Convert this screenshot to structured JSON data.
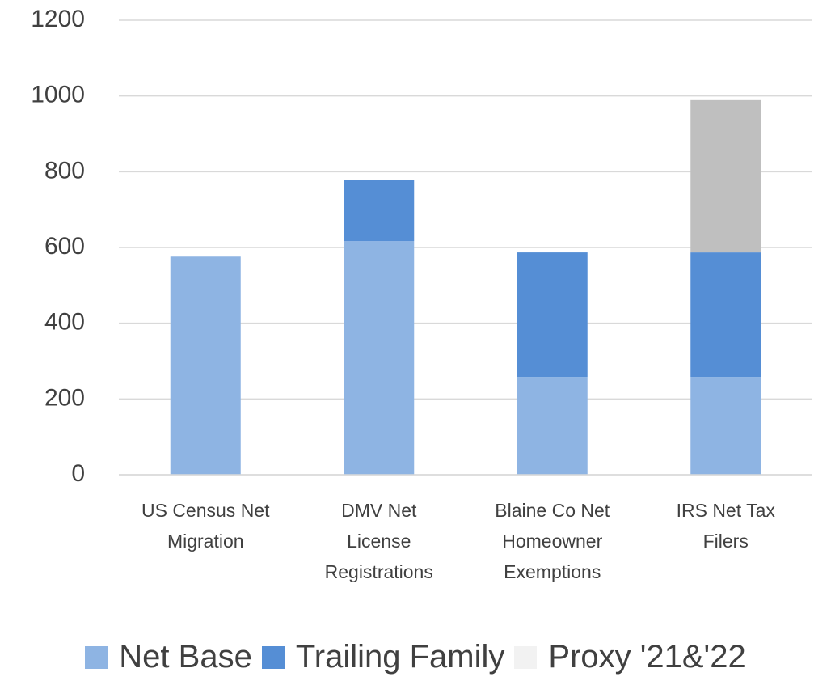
{
  "chart_data": {
    "type": "stacked_bar",
    "categories": [
      "US Census Net\nMigration",
      "DMV Net\nLicense\nRegistrations",
      "Blaine Co Net\nHomeowner\nExemptions",
      "IRS Net Tax\nFilers"
    ],
    "series": [
      {
        "name": "Net Base",
        "color": "#8EB4E3",
        "legend_color": "#8EB4E3",
        "values": [
          576,
          617,
          258,
          258
        ]
      },
      {
        "name": "Trailing Family",
        "color": "#558ED5",
        "legend_color": "#558ED5",
        "values": [
          null,
          162,
          329,
          329
        ]
      },
      {
        "name": "Proxy '21&'22",
        "color": "#BFBFBF",
        "legend_color": "#F2F2F2",
        "values": [
          null,
          null,
          null,
          402
        ]
      }
    ],
    "ylim": [
      0,
      1200
    ],
    "yticks": [
      0,
      200,
      400,
      600,
      800,
      1000,
      1200
    ],
    "grid": true,
    "legend": "bottom"
  }
}
